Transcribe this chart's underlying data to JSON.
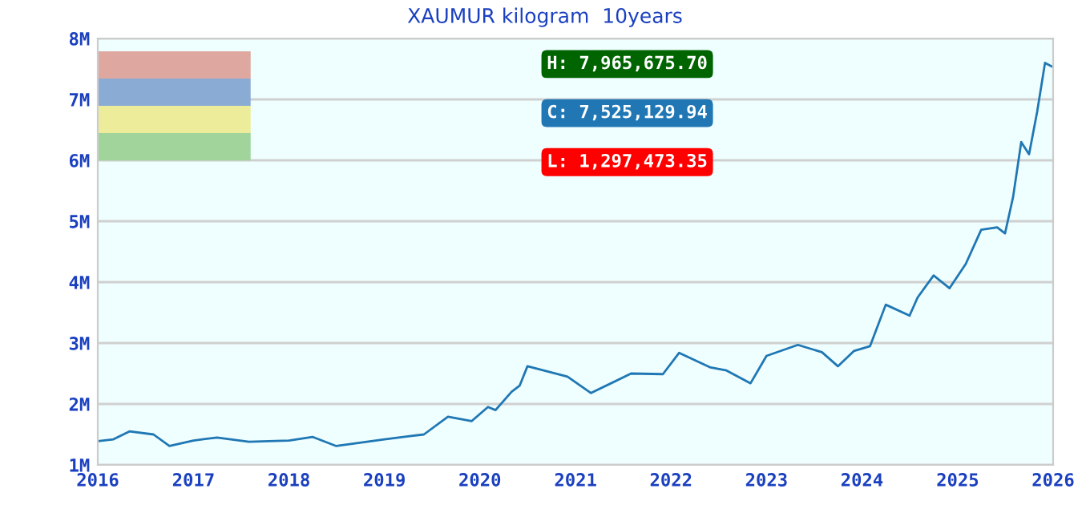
{
  "chart_data": {
    "type": "line",
    "title": "XAUMUR kilogram  10years",
    "x": [
      "2016-01",
      "2016-03",
      "2016-05",
      "2016-08",
      "2016-10",
      "2017-01",
      "2017-04",
      "2017-08",
      "2018-01",
      "2018-04",
      "2018-07",
      "2019-01",
      "2019-04",
      "2019-06",
      "2019-09",
      "2019-12",
      "2020-02",
      "2020-03",
      "2020-05",
      "2020-06",
      "2020-07",
      "2020-12",
      "2021-03",
      "2021-08",
      "2021-12",
      "2022-02",
      "2022-06",
      "2022-08",
      "2022-11",
      "2023-01",
      "2023-05",
      "2023-08",
      "2023-10",
      "2023-12",
      "2024-02",
      "2024-04",
      "2024-07",
      "2024-08",
      "2024-10",
      "2024-12",
      "2025-02",
      "2025-04",
      "2025-06",
      "2025-07",
      "2025-08",
      "2025-09",
      "2025-10",
      "2025-11",
      "2025-12",
      "2026-01"
    ],
    "series": [
      {
        "color": "#1f77b4",
        "values": [
          1390000,
          1420000,
          1550000,
          1500000,
          1310000,
          1400000,
          1450000,
          1380000,
          1400000,
          1460000,
          1310000,
          1420000,
          1470000,
          1500000,
          1790000,
          1720000,
          1950000,
          1900000,
          2200000,
          2300000,
          2620000,
          2450000,
          2180000,
          2500000,
          2490000,
          2840000,
          2600000,
          2550000,
          2340000,
          2790000,
          2970000,
          2850000,
          2620000,
          2870000,
          2950000,
          3630000,
          3450000,
          3750000,
          4110000,
          3900000,
          4300000,
          4860000,
          4900000,
          4800000,
          5400000,
          6300000,
          6100000,
          6800000,
          7600000,
          7530000
        ]
      }
    ],
    "xlim": [
      "2016",
      "2026"
    ],
    "xticks": [
      "2016",
      "2017",
      "2018",
      "2019",
      "2020",
      "2021",
      "2022",
      "2023",
      "2024",
      "2025",
      "2026"
    ],
    "ylim": [
      1000000,
      8000000
    ],
    "yticks": [
      {
        "value": 1000000,
        "label": "1M"
      },
      {
        "value": 2000000,
        "label": "2M"
      },
      {
        "value": 3000000,
        "label": "3M"
      },
      {
        "value": 4000000,
        "label": "4M"
      },
      {
        "value": 5000000,
        "label": "5M"
      },
      {
        "value": 6000000,
        "label": "6M"
      },
      {
        "value": 7000000,
        "label": "7M"
      },
      {
        "value": 8000000,
        "label": "8M"
      }
    ],
    "grid": "y",
    "marker": "none",
    "line_style": "solid",
    "annotations": [
      "H: 7,965,675.70",
      "C: 7,525,129.94",
      "L: 1,297,473.35"
    ]
  }
}
